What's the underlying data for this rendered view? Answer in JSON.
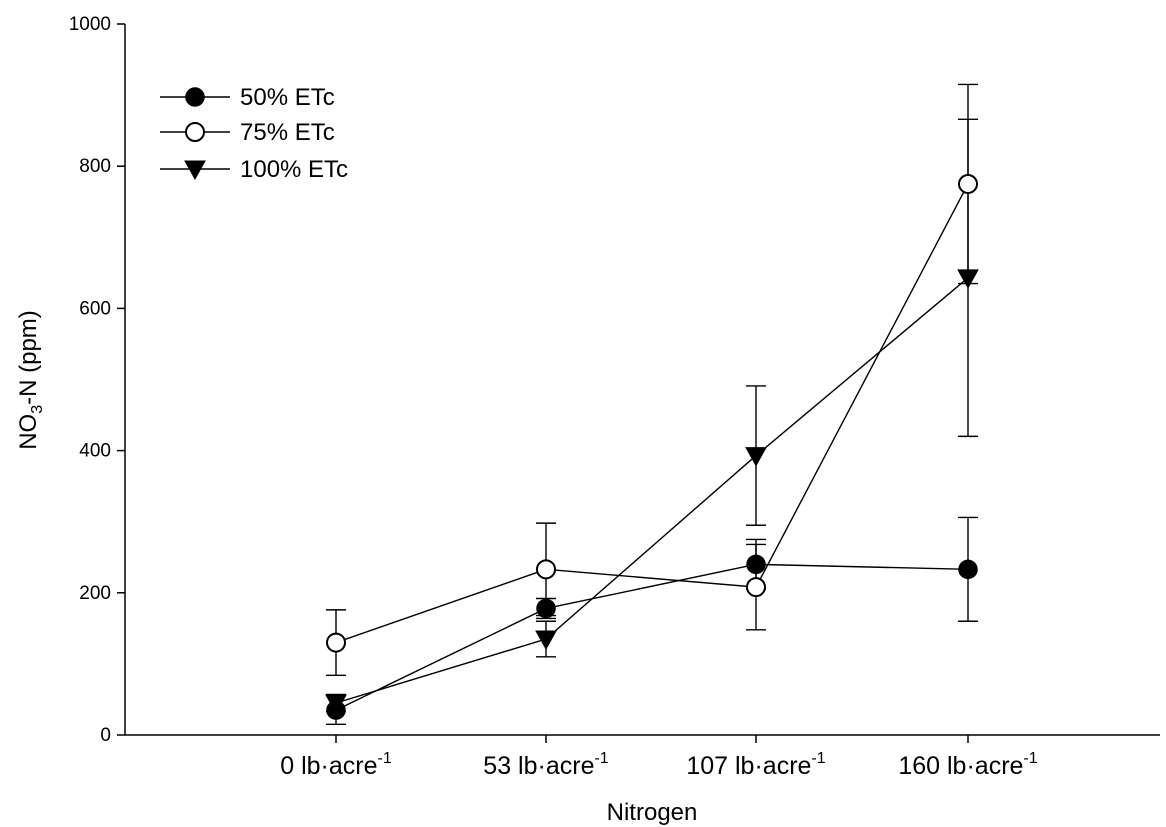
{
  "chart_data": {
    "type": "line",
    "categories": [
      "0 lb·acre",
      "53 lb·acre",
      "107 lb·acre",
      "160 lb·acre"
    ],
    "category_sup": "-1",
    "xlabel": "Nitrogen",
    "ylabel": {
      "prefix": "NO",
      "sub": "3",
      "suffix": "-N (ppm)"
    },
    "ylim": [
      0,
      1000
    ],
    "yticks": [
      0,
      200,
      400,
      600,
      800,
      1000
    ],
    "grid": false,
    "legend_position": "top-left",
    "series": [
      {
        "name": "50% ETc",
        "marker": "filled-circle",
        "values": [
          35,
          178,
          240,
          233
        ],
        "errors": [
          20,
          14,
          35,
          73
        ]
      },
      {
        "name": "75% ETc",
        "marker": "open-circle",
        "values": [
          130,
          233,
          208,
          775
        ],
        "errors": [
          46,
          65,
          60,
          140
        ]
      },
      {
        "name": "100% ETc",
        "marker": "filled-triangle-down",
        "values": [
          45,
          135,
          393,
          643
        ],
        "errors": [
          12,
          25,
          98,
          223
        ]
      }
    ]
  }
}
